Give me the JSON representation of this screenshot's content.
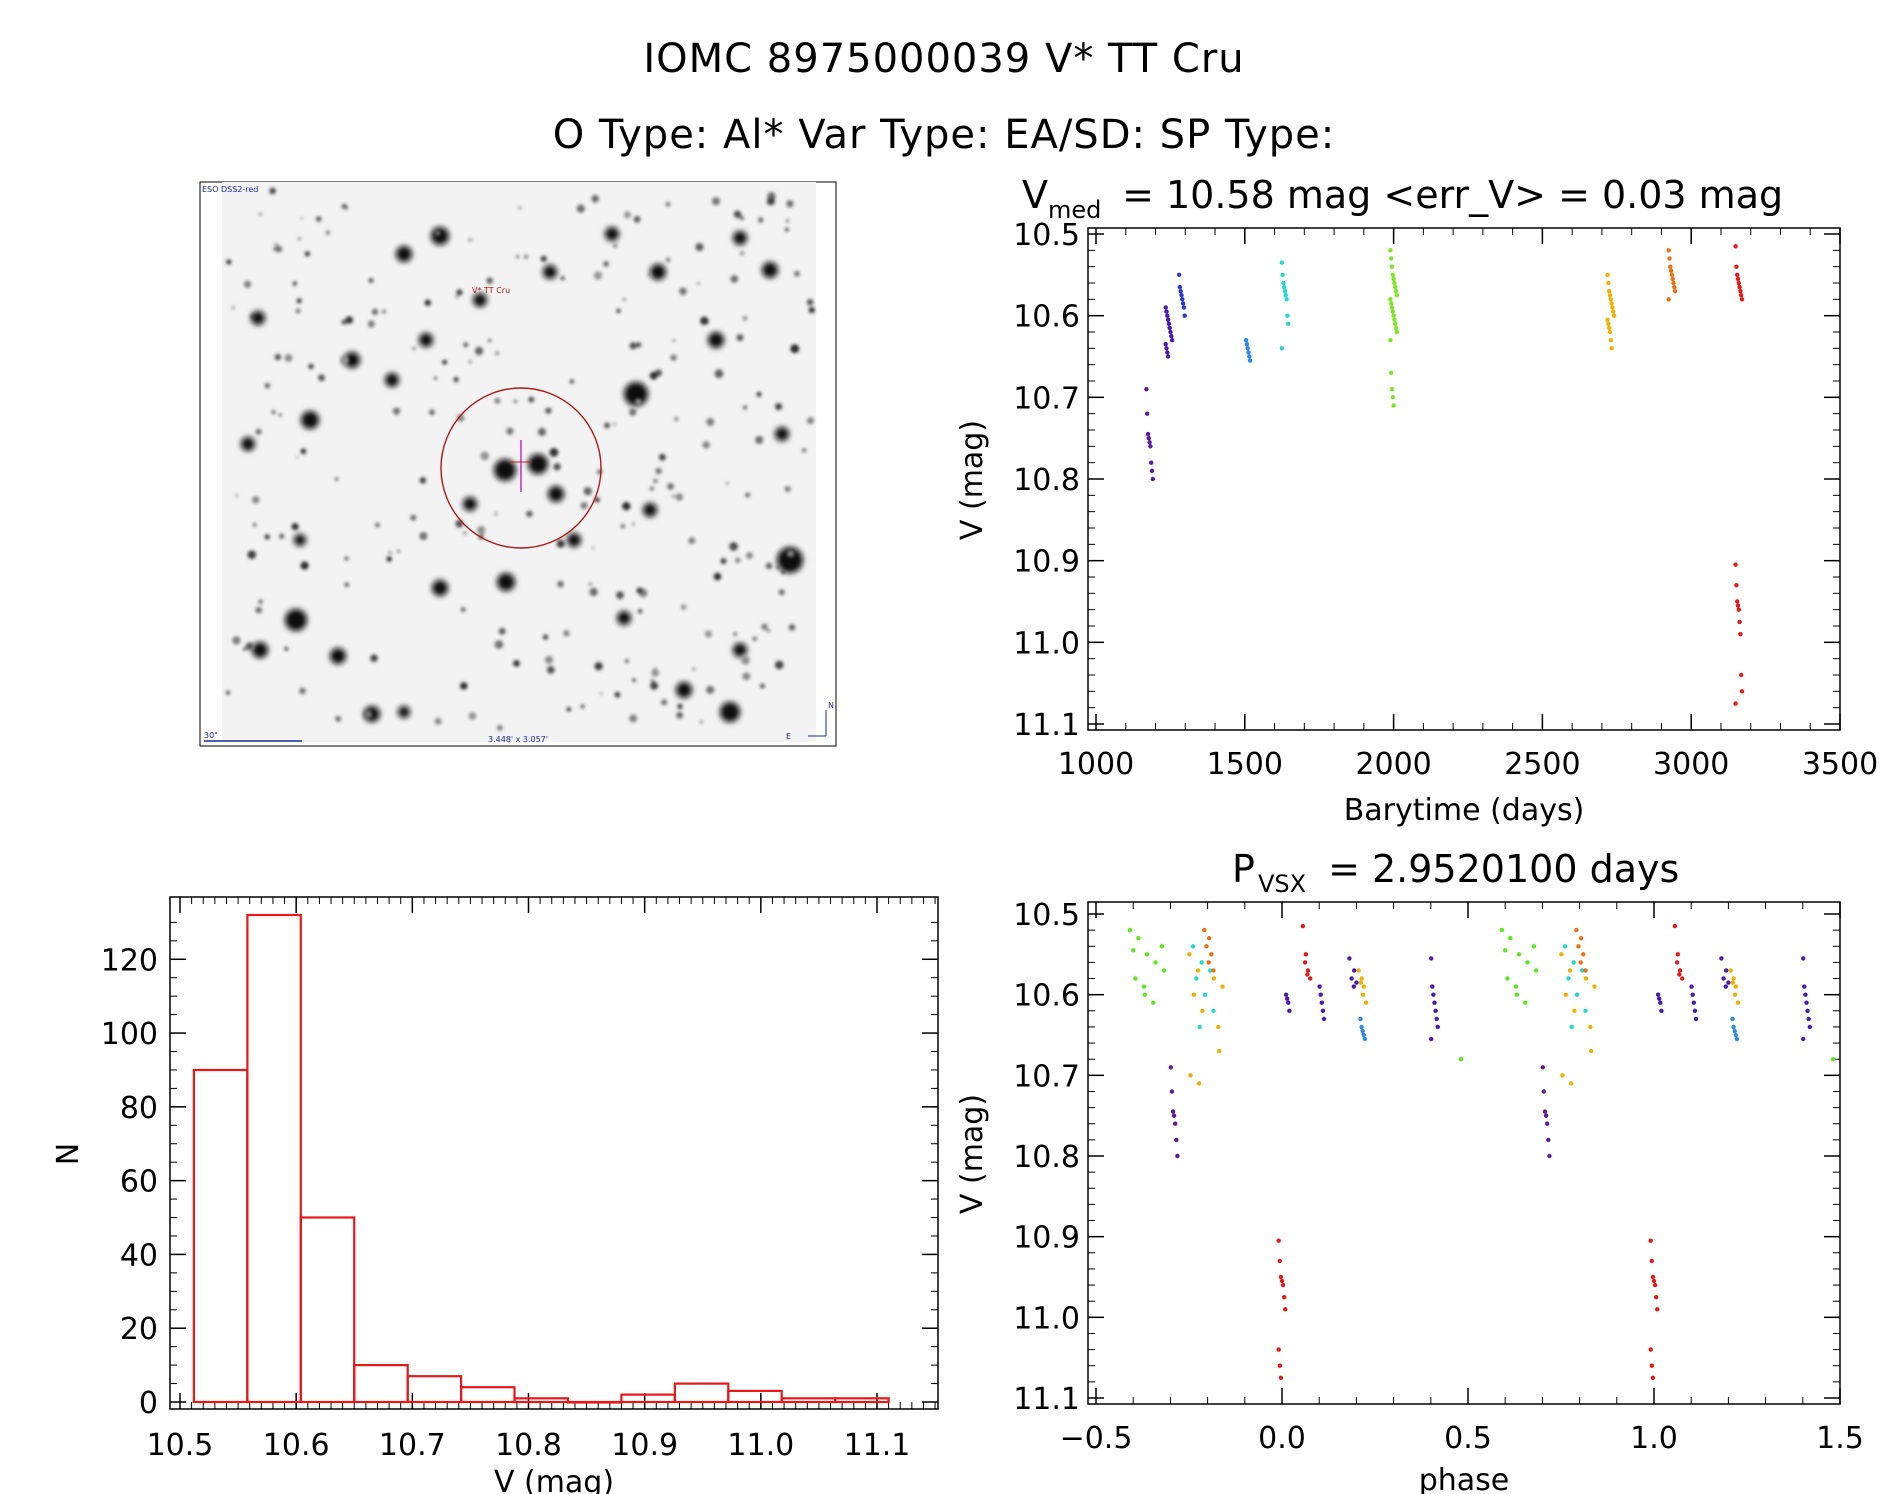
{
  "header": {
    "title": "IOMC 8975000039    V* TT Cru",
    "subtitle": "O Type: Al*  Var Type: EA/SD:  SP Type:"
  },
  "finder": {
    "survey_label": "ESO DSS2-red",
    "target_label": "V* TT Cru",
    "scale_label": "30\"",
    "fov_label": "3.448' x 3.057'",
    "north_label": "N",
    "east_label": "E",
    "colors": {
      "circle": "#b01818",
      "text": "#1a2a9a"
    }
  },
  "chart_data": [
    {
      "id": "lightcurve",
      "type": "scatter",
      "title_main": "V",
      "title_sub": "med",
      "title_rest": " = 10.58 mag <err_V> = 0.03 mag",
      "xlabel": "Barytime (days)",
      "ylabel": "V (mag)",
      "xlim": [
        1000,
        3500
      ],
      "ylim": [
        10.5,
        11.1
      ],
      "y_inverted": true,
      "x_ticks": [
        "1000",
        "1500",
        "2000",
        "2500",
        "3000",
        "3500"
      ],
      "y_ticks": [
        "10.5",
        "10.6",
        "10.7",
        "10.8",
        "10.9",
        "11.0",
        "11.1"
      ],
      "series": [
        {
          "name": "season-1",
          "color": "#5a1a9a",
          "x": 1180,
          "values": [
            10.69,
            10.72,
            10.745,
            10.75,
            10.755,
            10.76,
            10.78,
            10.79,
            10.8
          ]
        },
        {
          "name": "season-2",
          "color": "#4a1ab0",
          "x": 1245,
          "values": [
            10.59,
            10.595,
            10.6,
            10.605,
            10.61,
            10.615,
            10.62,
            10.625,
            10.63,
            10.635,
            10.64,
            10.645,
            10.65
          ]
        },
        {
          "name": "season-3",
          "color": "#2a3ad0",
          "x": 1290,
          "values": [
            10.55,
            10.565,
            10.57,
            10.575,
            10.58,
            10.585,
            10.59,
            10.6
          ]
        },
        {
          "name": "season-4",
          "color": "#2a8ae8",
          "x": 1515,
          "values": [
            10.63,
            10.635,
            10.64,
            10.645,
            10.65,
            10.655
          ]
        },
        {
          "name": "season-5",
          "color": "#20d8d0",
          "x": 1635,
          "values": [
            10.535,
            10.55,
            10.56,
            10.565,
            10.57,
            10.575,
            10.58,
            10.6,
            10.61,
            10.64
          ]
        },
        {
          "name": "season-6",
          "color": "#7ae820",
          "x": 2000,
          "values": [
            10.52,
            10.53,
            10.54,
            10.55,
            10.555,
            10.56,
            10.565,
            10.57,
            10.575,
            10.58,
            10.585,
            10.59,
            10.595,
            10.6,
            10.605,
            10.61,
            10.615,
            10.62,
            10.63,
            10.67,
            10.69,
            10.7,
            10.71
          ]
        },
        {
          "name": "season-7",
          "color": "#f0b000",
          "x": 2730,
          "values": [
            10.55,
            10.56,
            10.57,
            10.575,
            10.58,
            10.585,
            10.59,
            10.595,
            10.6,
            10.605,
            10.61,
            10.615,
            10.62,
            10.63,
            10.64
          ]
        },
        {
          "name": "season-8",
          "color": "#f07010",
          "x": 2935,
          "values": [
            10.52,
            10.53,
            10.54,
            10.545,
            10.55,
            10.555,
            10.56,
            10.565,
            10.57,
            10.58
          ]
        },
        {
          "name": "season-9",
          "color": "#e81818",
          "x": 3160,
          "values": [
            10.515,
            10.54,
            10.55,
            10.555,
            10.56,
            10.565,
            10.57,
            10.575,
            10.58,
            10.905,
            10.93,
            10.95,
            10.955,
            10.96,
            10.975,
            10.99,
            11.04,
            11.06,
            11.075
          ]
        }
      ]
    },
    {
      "id": "histogram",
      "type": "bar",
      "xlabel": "V (mag)",
      "ylabel": "N",
      "xlim": [
        10.48,
        11.18
      ],
      "ylim": [
        -3,
        135
      ],
      "bar_color": "#e81818",
      "x_ticks": [
        "10.5",
        "10.6",
        "10.7",
        "10.8",
        "10.9",
        "11.0",
        "11.1"
      ],
      "y_ticks": [
        "0",
        "20",
        "40",
        "60",
        "80",
        "100",
        "120"
      ],
      "bins": [
        {
          "lo": 10.512,
          "hi": 10.558,
          "count": 90
        },
        {
          "lo": 10.558,
          "hi": 10.604,
          "count": 132
        },
        {
          "lo": 10.604,
          "hi": 10.65,
          "count": 50
        },
        {
          "lo": 10.65,
          "hi": 10.696,
          "count": 10
        },
        {
          "lo": 10.696,
          "hi": 10.742,
          "count": 7
        },
        {
          "lo": 10.742,
          "hi": 10.788,
          "count": 4
        },
        {
          "lo": 10.788,
          "hi": 10.834,
          "count": 1
        },
        {
          "lo": 10.834,
          "hi": 10.88,
          "count": 0
        },
        {
          "lo": 10.88,
          "hi": 10.926,
          "count": 2
        },
        {
          "lo": 10.926,
          "hi": 10.972,
          "count": 5
        },
        {
          "lo": 10.972,
          "hi": 11.018,
          "count": 3
        },
        {
          "lo": 11.018,
          "hi": 11.064,
          "count": 1
        },
        {
          "lo": 11.064,
          "hi": 11.11,
          "count": 1
        }
      ]
    },
    {
      "id": "phased",
      "type": "scatter",
      "title_main": "P",
      "title_sub": "VSX",
      "title_rest": " = 2.9520100 days",
      "xlabel": "phase",
      "ylabel": "V (mag)",
      "xlim": [
        -0.5,
        1.5
      ],
      "ylim": [
        10.5,
        11.1
      ],
      "y_inverted": true,
      "x_ticks": [
        "−0.5",
        "0.0",
        "0.5",
        "1.0",
        "1.5"
      ],
      "y_ticks": [
        "10.5",
        "10.6",
        "10.7",
        "10.8",
        "10.9",
        "11.0",
        "11.1"
      ],
      "period_days": 2.95201,
      "repeat_offset": 1.0,
      "series": [
        {
          "name": "green",
          "color": "#5ae81a",
          "phases": [
            -0.4,
            -0.38,
            -0.36,
            -0.34,
            -0.32
          ],
          "values": [
            10.52,
            10.53,
            10.55,
            10.56,
            10.57,
            10.58,
            10.59,
            10.6,
            10.61,
            10.54,
            10.545
          ]
        },
        {
          "name": "green-late",
          "color": "#5ae81a",
          "phases": [
            0.49
          ],
          "values": [
            10.68
          ]
        },
        {
          "name": "purple-dip",
          "color": "#5a1a9a",
          "phases": [
            -0.29
          ],
          "values": [
            10.69,
            10.72,
            10.745,
            10.75,
            10.76,
            10.78,
            10.8
          ]
        },
        {
          "name": "cyan",
          "color": "#20d8d0",
          "phases": [
            -0.23,
            -0.21,
            -0.19
          ],
          "values": [
            10.54,
            10.56,
            10.57,
            10.58,
            10.6,
            10.62,
            10.64
          ]
        },
        {
          "name": "yellow",
          "color": "#f0b000",
          "phases": [
            -0.24,
            -0.22,
            -0.18,
            -0.16
          ],
          "values": [
            10.55,
            10.57,
            10.58,
            10.59,
            10.6,
            10.62,
            10.64,
            10.67,
            10.7,
            10.71
          ]
        },
        {
          "name": "orange",
          "color": "#f07010",
          "phases": [
            -0.2,
            -0.19
          ],
          "values": [
            10.52,
            10.53,
            10.54,
            10.55,
            10.56,
            10.57
          ]
        },
        {
          "name": "red-dip",
          "color": "#e81818",
          "phases": [
            0.0
          ],
          "values": [
            10.905,
            10.93,
            10.95,
            10.955,
            10.96,
            10.975,
            10.99,
            11.04,
            11.06,
            11.075
          ]
        },
        {
          "name": "red-max",
          "color": "#e81818",
          "phases": [
            0.065,
            0.07
          ],
          "values": [
            10.515,
            10.55,
            10.56,
            10.57,
            10.575,
            10.58
          ]
        },
        {
          "name": "indigo-a",
          "color": "#4a1ab0",
          "phases": [
            0.02
          ],
          "values": [
            10.6,
            10.605,
            10.61,
            10.62
          ]
        },
        {
          "name": "indigo-b",
          "color": "#4a1ab0",
          "phases": [
            0.11
          ],
          "values": [
            10.59,
            10.6,
            10.61,
            10.62,
            10.63
          ]
        },
        {
          "name": "indigo-c",
          "color": "#4a1ab0",
          "phases": [
            0.19,
            0.2
          ],
          "values": [
            10.555,
            10.57,
            10.58,
            10.585,
            10.59
          ]
        },
        {
          "name": "indigo-d",
          "color": "#4a1ab0",
          "phases": [
            0.41
          ],
          "values": [
            10.555,
            10.59,
            10.6,
            10.61,
            10.62,
            10.63,
            10.64,
            10.655
          ]
        },
        {
          "name": "blue",
          "color": "#2a8ae8",
          "phases": [
            0.22
          ],
          "values": [
            10.63,
            10.64,
            10.645,
            10.65,
            10.655
          ]
        },
        {
          "name": "gold",
          "color": "#f0b000",
          "phases": [
            0.215,
            0.22
          ],
          "values": [
            10.57,
            10.58,
            10.585,
            10.59,
            10.6,
            10.61
          ]
        }
      ]
    }
  ]
}
